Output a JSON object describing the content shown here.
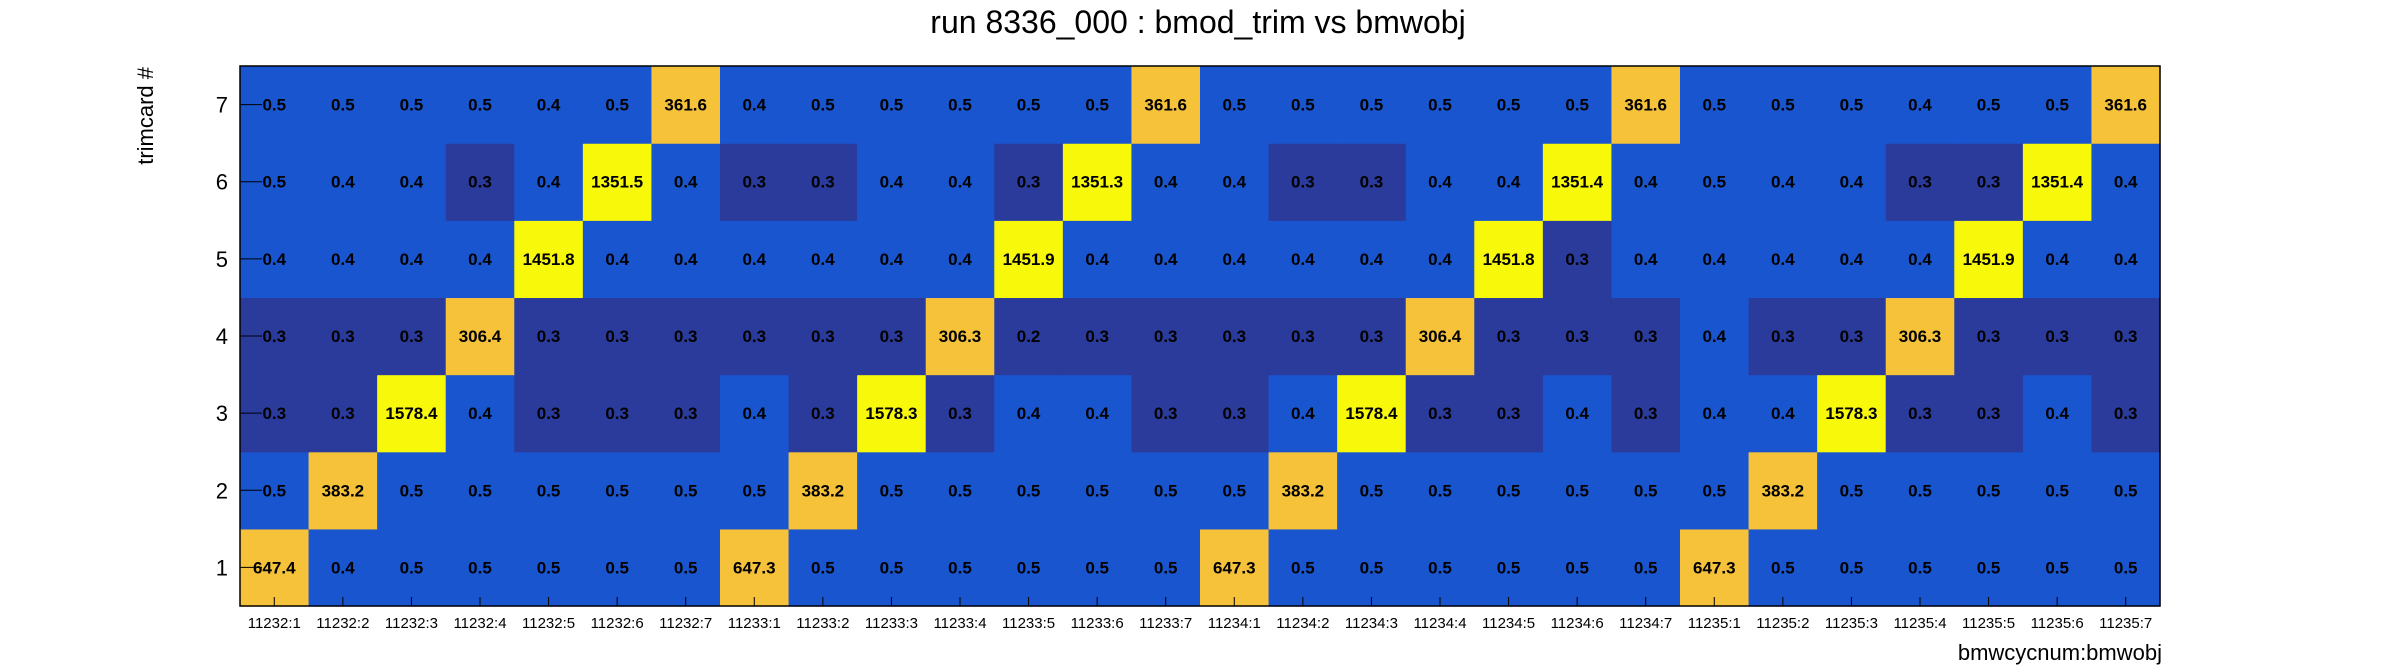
{
  "chart_data": {
    "type": "heatmap",
    "title": "run 8336_000 : bmod_trim vs bmwobj",
    "xlabel": "bmwcycnum:bmwobj",
    "ylabel": "trimcard #",
    "x_categories": [
      "11232:1",
      "11232:2",
      "11232:3",
      "11232:4",
      "11232:5",
      "11232:6",
      "11232:7",
      "11233:1",
      "11233:2",
      "11233:3",
      "11233:4",
      "11233:5",
      "11233:6",
      "11233:7",
      "11234:1",
      "11234:2",
      "11234:3",
      "11234:4",
      "11234:5",
      "11234:6",
      "11234:7",
      "11235:1",
      "11235:2",
      "11235:3",
      "11235:4",
      "11235:5",
      "11235:6",
      "11235:7"
    ],
    "y_categories": [
      "1",
      "2",
      "3",
      "4",
      "5",
      "6",
      "7"
    ],
    "values": [
      [
        "647.4",
        "0.4",
        "0.5",
        "0.5",
        "0.5",
        "0.5",
        "0.5",
        "647.3",
        "0.5",
        "0.5",
        "0.5",
        "0.5",
        "0.5",
        "0.5",
        "647.3",
        "0.5",
        "0.5",
        "0.5",
        "0.5",
        "0.5",
        "0.5",
        "647.3",
        "0.5",
        "0.5",
        "0.5",
        "0.5",
        "0.5",
        "0.5"
      ],
      [
        "0.5",
        "383.2",
        "0.5",
        "0.5",
        "0.5",
        "0.5",
        "0.5",
        "0.5",
        "383.2",
        "0.5",
        "0.5",
        "0.5",
        "0.5",
        "0.5",
        "0.5",
        "383.2",
        "0.5",
        "0.5",
        "0.5",
        "0.5",
        "0.5",
        "0.5",
        "383.2",
        "0.5",
        "0.5",
        "0.5",
        "0.5",
        "0.5"
      ],
      [
        "0.3",
        "0.3",
        "1578.4",
        "0.4",
        "0.3",
        "0.3",
        "0.3",
        "0.4",
        "0.3",
        "1578.3",
        "0.3",
        "0.4",
        "0.4",
        "0.3",
        "0.3",
        "0.4",
        "1578.4",
        "0.3",
        "0.3",
        "0.4",
        "0.3",
        "0.4",
        "0.4",
        "1578.3",
        "0.3",
        "0.3",
        "0.4",
        "0.3"
      ],
      [
        "0.3",
        "0.3",
        "0.3",
        "306.4",
        "0.3",
        "0.3",
        "0.3",
        "0.3",
        "0.3",
        "0.3",
        "306.3",
        "0.2",
        "0.3",
        "0.3",
        "0.3",
        "0.3",
        "0.3",
        "306.4",
        "0.3",
        "0.3",
        "0.3",
        "0.4",
        "0.3",
        "0.3",
        "306.3",
        "0.3",
        "0.3",
        "0.3"
      ],
      [
        "0.4",
        "0.4",
        "0.4",
        "0.4",
        "1451.8",
        "0.4",
        "0.4",
        "0.4",
        "0.4",
        "0.4",
        "0.4",
        "1451.9",
        "0.4",
        "0.4",
        "0.4",
        "0.4",
        "0.4",
        "0.4",
        "1451.8",
        "0.3",
        "0.4",
        "0.4",
        "0.4",
        "0.4",
        "0.4",
        "1451.9",
        "0.4",
        "0.4"
      ],
      [
        "0.5",
        "0.4",
        "0.4",
        "0.3",
        "0.4",
        "1351.5",
        "0.4",
        "0.3",
        "0.3",
        "0.4",
        "0.4",
        "0.3",
        "1351.3",
        "0.4",
        "0.4",
        "0.3",
        "0.3",
        "0.4",
        "0.4",
        "1351.4",
        "0.4",
        "0.5",
        "0.4",
        "0.4",
        "0.3",
        "0.3",
        "1351.4",
        "0.4"
      ],
      [
        "0.5",
        "0.5",
        "0.5",
        "0.5",
        "0.4",
        "0.5",
        "361.6",
        "0.4",
        "0.5",
        "0.5",
        "0.5",
        "0.5",
        "0.5",
        "361.6",
        "0.5",
        "0.5",
        "0.5",
        "0.5",
        "0.5",
        "0.5",
        "361.6",
        "0.5",
        "0.5",
        "0.5",
        "0.4",
        "0.5",
        "0.5",
        "361.6"
      ]
    ],
    "colors": {
      "dark": "#2a3b9c",
      "mid": "#1a55d0",
      "orange": "#f6c23a",
      "yellow": "#f8f80a",
      "frame": "#000000"
    },
    "grid": false,
    "legend": "none"
  }
}
